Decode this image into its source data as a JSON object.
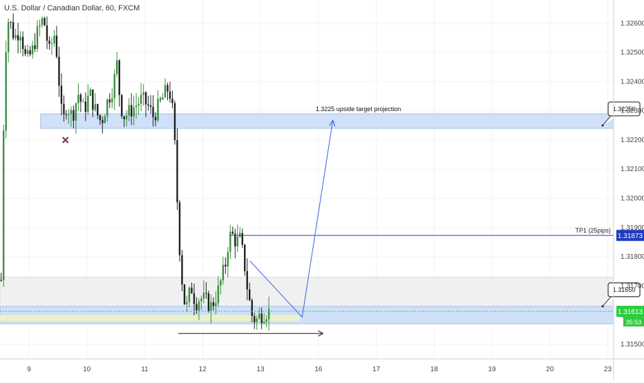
{
  "header": {
    "title": "U.S. Dollar / Canadian Dollar, 60, FXCM"
  },
  "colors": {
    "up": "#3a8f3a",
    "down": "#1f1f1f",
    "zone_blue": "#cfe0f8",
    "zone_grey": "#f0f0f0",
    "zone_green": "#eaf3c8",
    "line_blue": "#1f3cbf",
    "price_green": "#2ecc40",
    "grid": "#f3f3f3"
  },
  "chart_data": {
    "type": "candlestick",
    "symbol": "U.S. Dollar / Canadian Dollar",
    "interval": "60",
    "source": "FXCM",
    "ylim": [
      1.3145,
      1.3268
    ],
    "y_ticks": [
      "1.32600",
      "1.32500",
      "1.32400",
      "1.32300",
      "1.32200",
      "1.32100",
      "1.32000",
      "1.31900",
      "1.31800",
      "1.31700",
      "1.31600",
      "1.31500"
    ],
    "x_ticks": [
      {
        "label": "9",
        "day": 9
      },
      {
        "label": "10",
        "day": 10
      },
      {
        "label": "11",
        "day": 11
      },
      {
        "label": "12",
        "day": 12
      },
      {
        "label": "13",
        "day": 13
      },
      {
        "label": "16",
        "day": 14
      },
      {
        "label": "17",
        "day": 15
      },
      {
        "label": "18",
        "day": 16
      },
      {
        "label": "19",
        "day": 17
      },
      {
        "label": "20",
        "day": 18
      },
      {
        "label": "23",
        "day": 19
      }
    ],
    "x_range": [
      8.5,
      19.1
    ],
    "close_path": [
      [
        8.52,
        1.3172
      ],
      [
        8.58,
        1.3248
      ],
      [
        8.65,
        1.3262
      ],
      [
        8.75,
        1.3255
      ],
      [
        8.85,
        1.3258
      ],
      [
        8.95,
        1.3247
      ],
      [
        9.05,
        1.325
      ],
      [
        9.15,
        1.3257
      ],
      [
        9.25,
        1.3262
      ],
      [
        9.35,
        1.325
      ],
      [
        9.45,
        1.3257
      ],
      [
        9.52,
        1.324
      ],
      [
        9.58,
        1.3225
      ],
      [
        9.65,
        1.3232
      ],
      [
        9.75,
        1.3228
      ],
      [
        9.85,
        1.3236
      ],
      [
        9.95,
        1.323
      ],
      [
        10.05,
        1.3236
      ],
      [
        10.15,
        1.323
      ],
      [
        10.25,
        1.3226
      ],
      [
        10.35,
        1.3233
      ],
      [
        10.45,
        1.3238
      ],
      [
        10.52,
        1.3246
      ],
      [
        10.58,
        1.3232
      ],
      [
        10.65,
        1.3228
      ],
      [
        10.75,
        1.323
      ],
      [
        10.85,
        1.3232
      ],
      [
        10.95,
        1.3234
      ],
      [
        11.05,
        1.3232
      ],
      [
        11.15,
        1.3228
      ],
      [
        11.25,
        1.3232
      ],
      [
        11.35,
        1.3236
      ],
      [
        11.42,
        1.3238
      ],
      [
        11.48,
        1.323
      ],
      [
        11.53,
        1.3215
      ],
      [
        11.58,
        1.319
      ],
      [
        11.63,
        1.3175
      ],
      [
        11.68,
        1.3165
      ],
      [
        11.73,
        1.3163
      ],
      [
        11.8,
        1.317
      ],
      [
        11.88,
        1.3164
      ],
      [
        11.95,
        1.3166
      ],
      [
        12.05,
        1.3165
      ],
      [
        12.15,
        1.3163
      ],
      [
        12.25,
        1.3167
      ],
      [
        12.32,
        1.3172
      ],
      [
        12.4,
        1.3178
      ],
      [
        12.45,
        1.3186
      ],
      [
        12.5,
        1.3188
      ],
      [
        12.58,
        1.3185
      ],
      [
        12.65,
        1.3186
      ],
      [
        12.72,
        1.3178
      ],
      [
        12.78,
        1.3168
      ],
      [
        12.85,
        1.316
      ],
      [
        12.92,
        1.3158
      ],
      [
        13.0,
        1.316
      ],
      [
        13.08,
        1.3161
      ],
      [
        13.15,
        1.3161
      ]
    ],
    "annotations": {
      "target_text": "1.3225 upside target projection",
      "label_upper": "1.32250",
      "label_lower": "1.31650",
      "tp1_text": "TP1 (25pips)",
      "tp1_price_tag": "1.31873",
      "current_price_tag": "1.31613",
      "countdown": "35:53",
      "tp1_price": 1.31873,
      "current_price": 1.31613,
      "resistance_zone": [
        1.3224,
        1.3229
      ],
      "grey_zone": [
        1.3163,
        1.3173
      ],
      "blue_zone_low": [
        1.3157,
        1.3163
      ],
      "green_zone": [
        1.3158,
        1.316
      ],
      "cross_marker": {
        "day": 9.63,
        "price": 1.322
      },
      "projection_path": [
        [
          12.82,
          1.31785
        ],
        [
          13.72,
          1.31593
        ],
        [
          14.25,
          1.32268
        ]
      ],
      "horizontal_arrow": {
        "from_day": 11.58,
        "to_day": 14.08,
        "price": 1.31537
      },
      "label_upper_anchor": {
        "day": 18.91,
        "price": 1.3225
      },
      "label_lower_anchor": {
        "day": 18.91,
        "price": 1.3163
      }
    }
  }
}
